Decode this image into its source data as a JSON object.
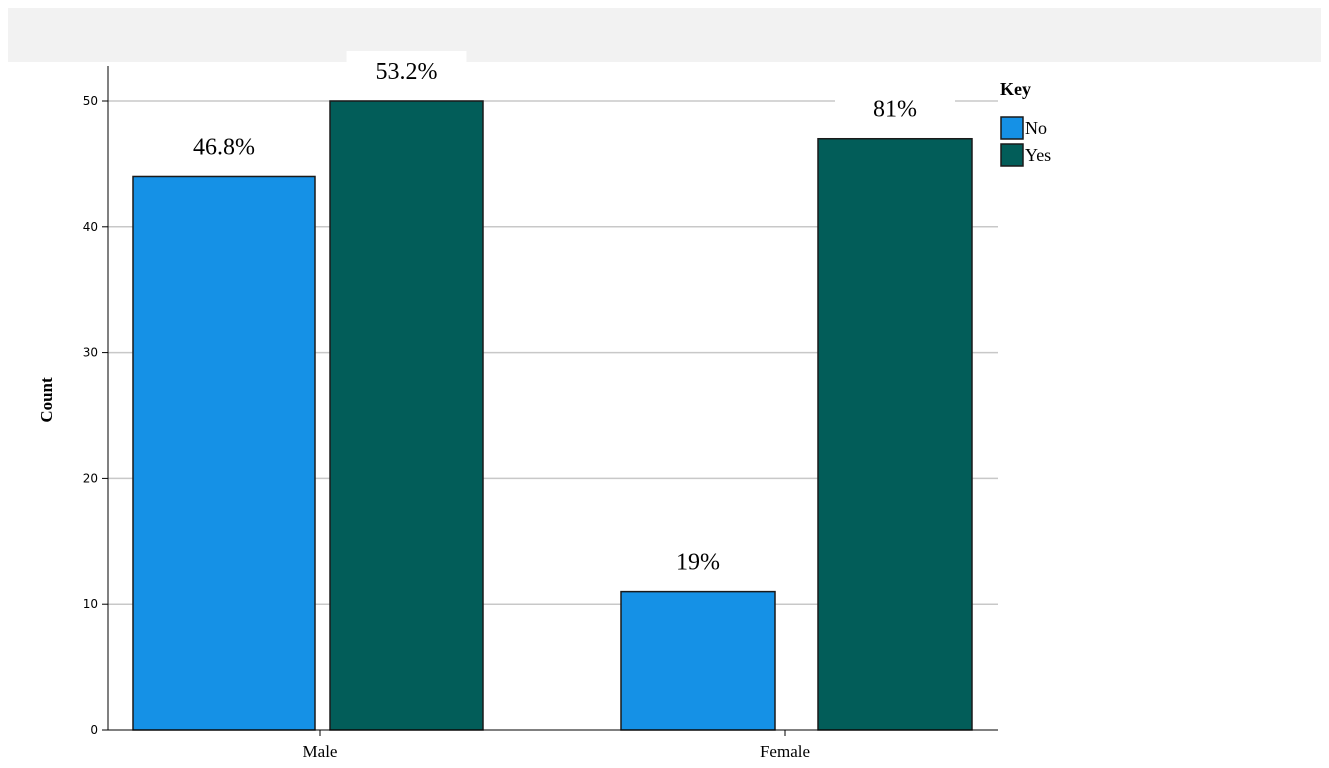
{
  "chart_data": {
    "type": "bar",
    "categories": [
      "Male",
      "Female"
    ],
    "series": [
      {
        "name": "No",
        "color": "#1591e6",
        "values": [
          44,
          11
        ],
        "labels": [
          "46.8%",
          "19%"
        ]
      },
      {
        "name": "Yes",
        "color": "#025d59",
        "values": [
          50,
          47
        ],
        "labels": [
          "53.2%",
          "81%"
        ]
      }
    ],
    "ylabel": "Count",
    "xlabel": "",
    "ylim": [
      0,
      50
    ],
    "yticks": [
      0,
      10,
      20,
      30,
      40,
      50
    ],
    "grid": true,
    "legend": {
      "title": "Key",
      "position": "right"
    }
  }
}
